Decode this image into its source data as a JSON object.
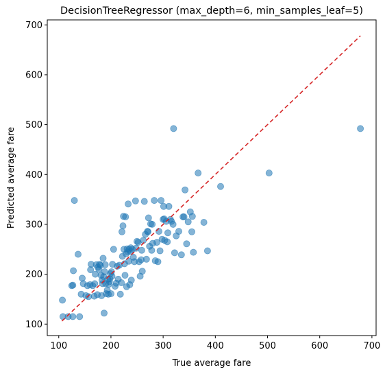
{
  "chart_data": {
    "type": "scatter",
    "title": "DecisionTreeRegressor (max_depth=6, min_samples_leaf=5)",
    "xlabel": "True average fare",
    "ylabel": "Predicted average fare",
    "xlim": [
      78,
      708
    ],
    "ylim": [
      77,
      710
    ],
    "xticks": [
      100,
      200,
      300,
      400,
      500,
      600,
      700
    ],
    "yticks": [
      100,
      200,
      300,
      400,
      500,
      600,
      700
    ],
    "grid": false,
    "point_color": "#1f77b4",
    "point_alpha": 0.55,
    "reference_line": {
      "style": "dashed",
      "color": "#d62728",
      "x": [
        106,
        678
      ],
      "y": [
        106,
        678
      ]
    },
    "points": [
      [
        107,
        148
      ],
      [
        108,
        115
      ],
      [
        118,
        115
      ],
      [
        127,
        115
      ],
      [
        140,
        115
      ],
      [
        125,
        177
      ],
      [
        127,
        178
      ],
      [
        128,
        207
      ],
      [
        130,
        348
      ],
      [
        137,
        240
      ],
      [
        143,
        160
      ],
      [
        145,
        192
      ],
      [
        147,
        181
      ],
      [
        152,
        157
      ],
      [
        155,
        177
      ],
      [
        157,
        155
      ],
      [
        160,
        179
      ],
      [
        161,
        209
      ],
      [
        162,
        220
      ],
      [
        165,
        177
      ],
      [
        168,
        156
      ],
      [
        169,
        181
      ],
      [
        170,
        200
      ],
      [
        172,
        219
      ],
      [
        174,
        159
      ],
      [
        175,
        214
      ],
      [
        177,
        210
      ],
      [
        178,
        220
      ],
      [
        180,
        218
      ],
      [
        181,
        198
      ],
      [
        182,
        157
      ],
      [
        183,
        188
      ],
      [
        184,
        181
      ],
      [
        185,
        232
      ],
      [
        186,
        195
      ],
      [
        187,
        122
      ],
      [
        188,
        205
      ],
      [
        189,
        219
      ],
      [
        190,
        181
      ],
      [
        191,
        161
      ],
      [
        193,
        168
      ],
      [
        194,
        190
      ],
      [
        195,
        160
      ],
      [
        196,
        180
      ],
      [
        197,
        185
      ],
      [
        198,
        191
      ],
      [
        199,
        201
      ],
      [
        200,
        161
      ],
      [
        201,
        205
      ],
      [
        202,
        196
      ],
      [
        203,
        220
      ],
      [
        205,
        250
      ],
      [
        208,
        176
      ],
      [
        210,
        182
      ],
      [
        212,
        216
      ],
      [
        214,
        190
      ],
      [
        216,
        218
      ],
      [
        218,
        160
      ],
      [
        220,
        183
      ],
      [
        221,
        285
      ],
      [
        222,
        236
      ],
      [
        223,
        297
      ],
      [
        224,
        316
      ],
      [
        225,
        250
      ],
      [
        226,
        221
      ],
      [
        227,
        198
      ],
      [
        228,
        315
      ],
      [
        229,
        241
      ],
      [
        230,
        175
      ],
      [
        231,
        251
      ],
      [
        232,
        245
      ],
      [
        233,
        341
      ],
      [
        234,
        226
      ],
      [
        235,
        250
      ],
      [
        236,
        179
      ],
      [
        237,
        246
      ],
      [
        238,
        253
      ],
      [
        239,
        188
      ],
      [
        241,
        250
      ],
      [
        243,
        234
      ],
      [
        245,
        225
      ],
      [
        247,
        347
      ],
      [
        248,
        252
      ],
      [
        250,
        266
      ],
      [
        252,
        264
      ],
      [
        254,
        225
      ],
      [
        256,
        196
      ],
      [
        258,
        229
      ],
      [
        259,
        248
      ],
      [
        260,
        206
      ],
      [
        262,
        268
      ],
      [
        264,
        346
      ],
      [
        266,
        280
      ],
      [
        268,
        230
      ],
      [
        270,
        286
      ],
      [
        271,
        285
      ],
      [
        272,
        313
      ],
      [
        274,
        256
      ],
      [
        276,
        301
      ],
      [
        278,
        248
      ],
      [
        279,
        300
      ],
      [
        280,
        262
      ],
      [
        283,
        348
      ],
      [
        285,
        227
      ],
      [
        288,
        264
      ],
      [
        290,
        225
      ],
      [
        292,
        286
      ],
      [
        294,
        247
      ],
      [
        296,
        348
      ],
      [
        298,
        270
      ],
      [
        300,
        310
      ],
      [
        301,
        336
      ],
      [
        302,
        311
      ],
      [
        303,
        268
      ],
      [
        306,
        306
      ],
      [
        308,
        265
      ],
      [
        309,
        283
      ],
      [
        311,
        336
      ],
      [
        314,
        310
      ],
      [
        316,
        306
      ],
      [
        319,
        300
      ],
      [
        320,
        492
      ],
      [
        322,
        243
      ],
      [
        325,
        277
      ],
      [
        330,
        286
      ],
      [
        335,
        239
      ],
      [
        338,
        315
      ],
      [
        340,
        315
      ],
      [
        342,
        369
      ],
      [
        345,
        261
      ],
      [
        348,
        305
      ],
      [
        352,
        325
      ],
      [
        355,
        285
      ],
      [
        356,
        316
      ],
      [
        358,
        244
      ],
      [
        367,
        403
      ],
      [
        378,
        304
      ],
      [
        385,
        247
      ],
      [
        410,
        376
      ],
      [
        503,
        403
      ],
      [
        678,
        492
      ]
    ]
  }
}
